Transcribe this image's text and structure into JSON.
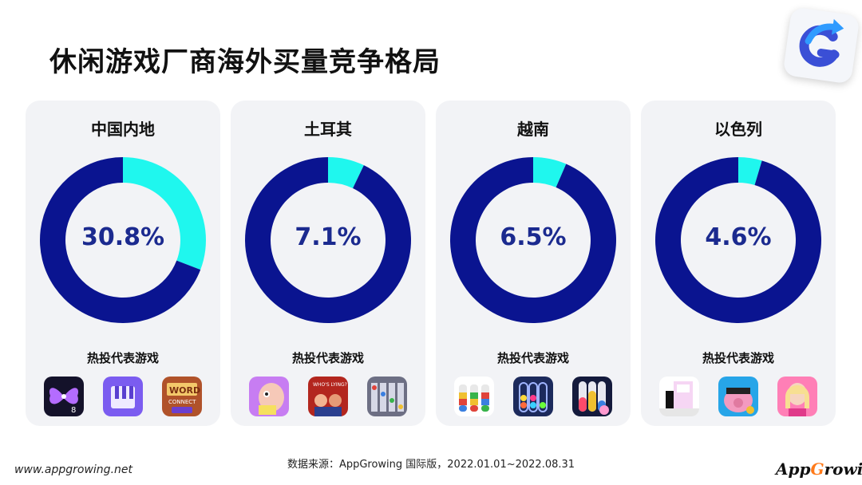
{
  "title": "休闲游戏厂商海外买量竞争格局",
  "games_label": "热投代表游戏",
  "footer": {
    "source": "数据来源：AppGrowing 国际版，2022.01.01~2022.08.31",
    "url": "www.appgrowing.net",
    "brand_prefix": "App",
    "brand_g": "G",
    "brand_suffix": "rowing"
  },
  "colors": {
    "highlight": "#1ff7ee",
    "remainder": "#0a1490",
    "value_text": "#1b2a8f"
  },
  "chart_data": [
    {
      "type": "pie",
      "title": "中国内地",
      "values": [
        30.8,
        69.2
      ],
      "value_label": "30.8%",
      "games": [
        "butterfly-number-game-icon",
        "piano-tiles-game-icon",
        "word-connect-game-icon"
      ]
    },
    {
      "type": "pie",
      "title": "土耳其",
      "values": [
        7.1,
        92.9
      ],
      "value_label": "7.1%",
      "games": [
        "cartoon-face-game-icon",
        "whos-lying-game-icon",
        "ball-sort-grid-game-icon"
      ]
    },
    {
      "type": "pie",
      "title": "越南",
      "values": [
        6.5,
        93.5
      ],
      "value_label": "6.5%",
      "games": [
        "water-sort-tubes-game-icon",
        "ball-sort-tubes-game-icon",
        "liquid-sort-game-icon"
      ]
    },
    {
      "type": "pie",
      "title": "以色列",
      "values": [
        4.6,
        95.4
      ],
      "value_label": "4.6%",
      "games": [
        "tiles-puzzle-game-icon",
        "piggy-coin-game-icon",
        "fashion-doll-game-icon"
      ]
    }
  ]
}
